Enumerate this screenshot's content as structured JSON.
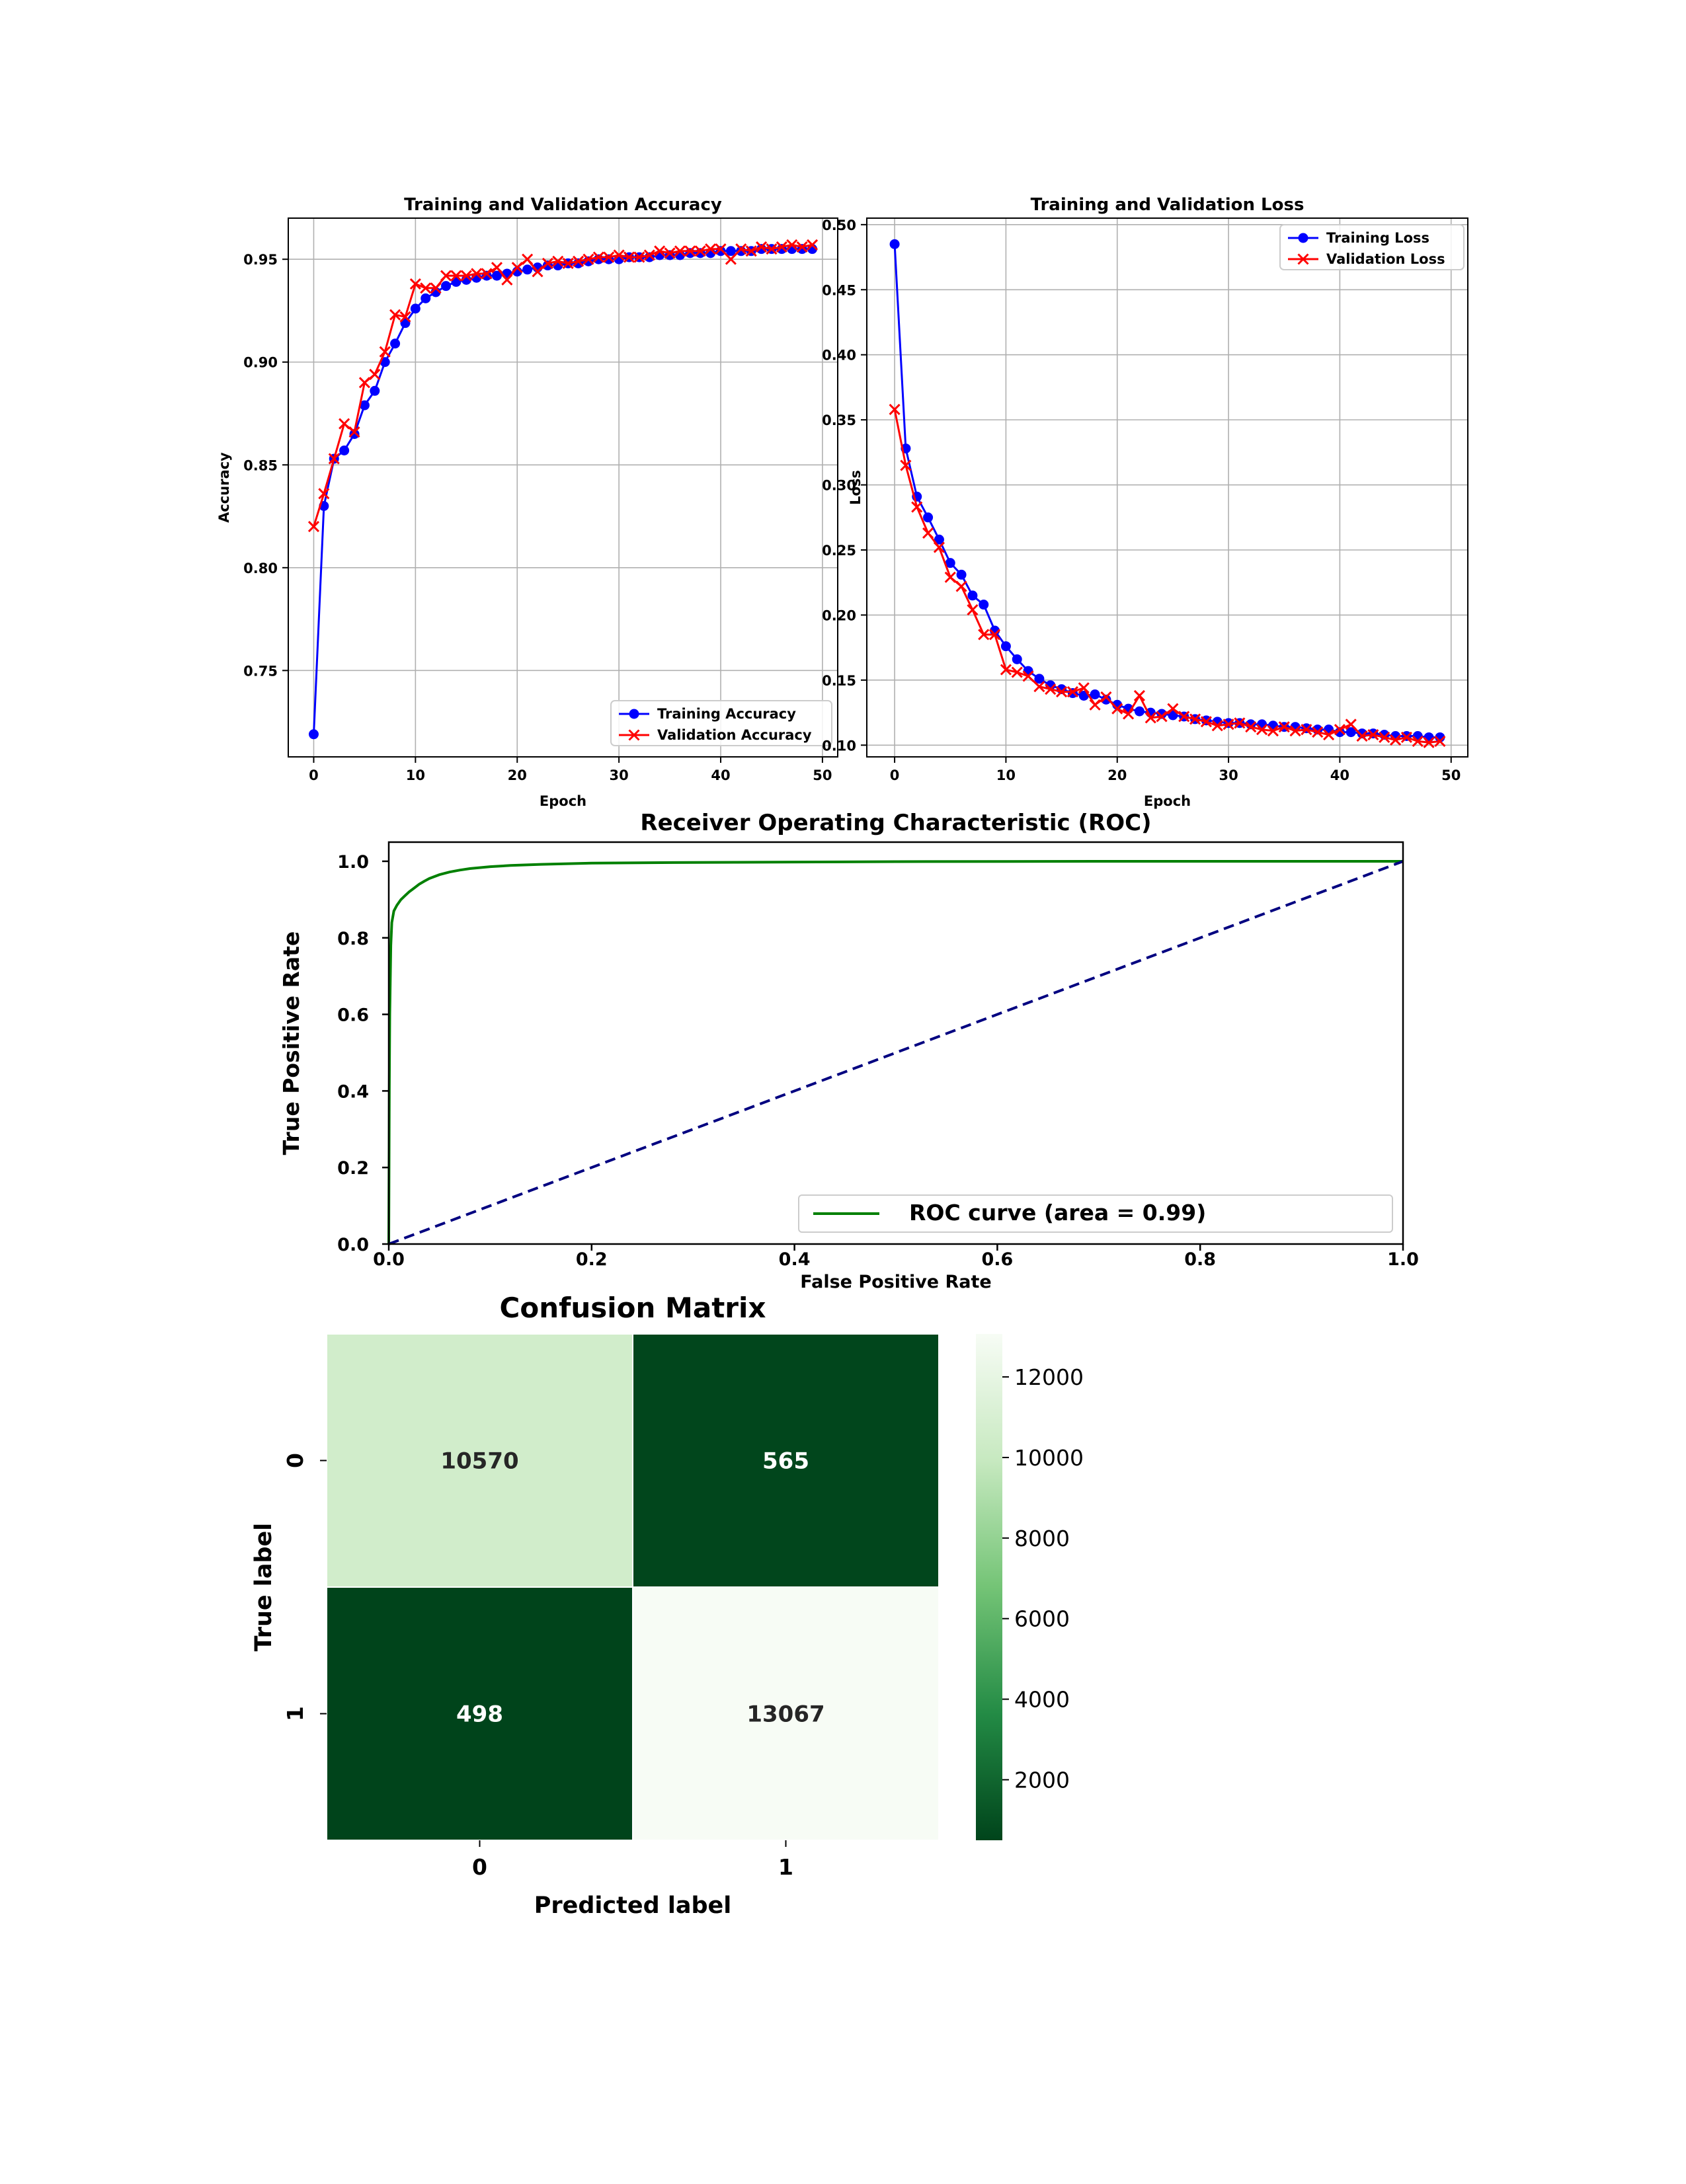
{
  "chart_data": [
    {
      "type": "line",
      "title": "Training and Validation Accuracy",
      "xlabel": "Epoch",
      "ylabel": "Accuracy",
      "xlim": [
        -2.5,
        51.5
      ],
      "ylim": [
        0.708,
        0.97
      ],
      "xticks": [
        0,
        10,
        20,
        30,
        40,
        50
      ],
      "yticks": [
        0.75,
        0.8,
        0.85,
        0.9,
        0.95
      ],
      "ytick_labels": [
        "0.75",
        "0.80",
        "0.85",
        "0.90",
        "0.95"
      ],
      "grid": true,
      "legend_position": "lower-right",
      "x": [
        0,
        1,
        2,
        3,
        4,
        5,
        6,
        7,
        8,
        9,
        10,
        11,
        12,
        13,
        14,
        15,
        16,
        17,
        18,
        19,
        20,
        21,
        22,
        23,
        24,
        25,
        26,
        27,
        28,
        29,
        30,
        31,
        32,
        33,
        34,
        35,
        36,
        37,
        38,
        39,
        40,
        41,
        42,
        43,
        44,
        45,
        46,
        47,
        48,
        49
      ],
      "series": [
        {
          "name": "Training Accuracy",
          "color": "#0000ff",
          "marker": "circle",
          "values": [
            0.719,
            0.83,
            0.853,
            0.857,
            0.865,
            0.879,
            0.886,
            0.9,
            0.909,
            0.919,
            0.926,
            0.931,
            0.934,
            0.937,
            0.939,
            0.94,
            0.941,
            0.942,
            0.942,
            0.943,
            0.944,
            0.945,
            0.946,
            0.947,
            0.947,
            0.948,
            0.948,
            0.949,
            0.95,
            0.95,
            0.95,
            0.951,
            0.951,
            0.951,
            0.952,
            0.952,
            0.952,
            0.953,
            0.953,
            0.953,
            0.954,
            0.954,
            0.954,
            0.954,
            0.955,
            0.955,
            0.955,
            0.955,
            0.955,
            0.955
          ]
        },
        {
          "name": "Validation Accuracy",
          "color": "#ff0000",
          "marker": "x",
          "values": [
            0.82,
            0.836,
            0.853,
            0.87,
            0.866,
            0.89,
            0.894,
            0.905,
            0.923,
            0.922,
            0.938,
            0.936,
            0.936,
            0.942,
            0.942,
            0.942,
            0.943,
            0.943,
            0.946,
            0.94,
            0.946,
            0.95,
            0.944,
            0.948,
            0.949,
            0.948,
            0.949,
            0.95,
            0.951,
            0.951,
            0.952,
            0.951,
            0.951,
            0.952,
            0.954,
            0.953,
            0.954,
            0.954,
            0.954,
            0.955,
            0.955,
            0.95,
            0.955,
            0.954,
            0.956,
            0.955,
            0.956,
            0.957,
            0.956,
            0.957
          ]
        }
      ]
    },
    {
      "type": "line",
      "title": "Training and Validation Loss",
      "xlabel": "Epoch",
      "ylabel": "Loss",
      "xlim": [
        -2.5,
        51.5
      ],
      "ylim": [
        0.091,
        0.505
      ],
      "xticks": [
        0,
        10,
        20,
        30,
        40,
        50
      ],
      "yticks": [
        0.1,
        0.15,
        0.2,
        0.25,
        0.3,
        0.35,
        0.4,
        0.45,
        0.5
      ],
      "ytick_labels": [
        "0.10",
        "0.15",
        "0.20",
        "0.25",
        "0.30",
        "0.35",
        "0.40",
        "0.45",
        "0.50"
      ],
      "grid": true,
      "legend_position": "upper-right",
      "x": [
        0,
        1,
        2,
        3,
        4,
        5,
        6,
        7,
        8,
        9,
        10,
        11,
        12,
        13,
        14,
        15,
        16,
        17,
        18,
        19,
        20,
        21,
        22,
        23,
        24,
        25,
        26,
        27,
        28,
        29,
        30,
        31,
        32,
        33,
        34,
        35,
        36,
        37,
        38,
        39,
        40,
        41,
        42,
        43,
        44,
        45,
        46,
        47,
        48,
        49
      ],
      "series": [
        {
          "name": "Training Loss",
          "color": "#0000ff",
          "marker": "circle",
          "values": [
            0.485,
            0.328,
            0.291,
            0.275,
            0.258,
            0.24,
            0.231,
            0.215,
            0.208,
            0.188,
            0.176,
            0.166,
            0.157,
            0.151,
            0.146,
            0.143,
            0.14,
            0.138,
            0.139,
            0.135,
            0.131,
            0.128,
            0.126,
            0.125,
            0.124,
            0.123,
            0.122,
            0.12,
            0.119,
            0.118,
            0.117,
            0.117,
            0.116,
            0.116,
            0.115,
            0.114,
            0.114,
            0.113,
            0.112,
            0.112,
            0.11,
            0.11,
            0.109,
            0.109,
            0.108,
            0.107,
            0.107,
            0.107,
            0.106,
            0.106
          ]
        },
        {
          "name": "Validation Loss",
          "color": "#ff0000",
          "marker": "x",
          "values": [
            0.358,
            0.315,
            0.283,
            0.263,
            0.252,
            0.229,
            0.222,
            0.204,
            0.185,
            0.185,
            0.158,
            0.156,
            0.153,
            0.145,
            0.143,
            0.141,
            0.141,
            0.144,
            0.131,
            0.137,
            0.128,
            0.124,
            0.138,
            0.121,
            0.122,
            0.128,
            0.122,
            0.12,
            0.118,
            0.115,
            0.116,
            0.117,
            0.114,
            0.112,
            0.111,
            0.114,
            0.111,
            0.112,
            0.11,
            0.108,
            0.112,
            0.116,
            0.107,
            0.108,
            0.106,
            0.104,
            0.106,
            0.103,
            0.102,
            0.103
          ]
        }
      ]
    },
    {
      "type": "line",
      "title": "Receiver Operating Characteristic (ROC)",
      "xlabel": "False Positive Rate",
      "ylabel": "True Positive Rate",
      "xlim": [
        0.0,
        1.0
      ],
      "ylim": [
        0.0,
        1.05
      ],
      "xticks": [
        0.0,
        0.2,
        0.4,
        0.6,
        0.8,
        1.0
      ],
      "yticks": [
        0.0,
        0.2,
        0.4,
        0.6,
        0.8,
        1.0
      ],
      "tick_labels": [
        "0.0",
        "0.2",
        "0.4",
        "0.6",
        "0.8",
        "1.0"
      ],
      "grid": false,
      "legend_position": "lower-right",
      "series": [
        {
          "name": "ROC curve (area = 0.99)",
          "color": "#008000",
          "style": "solid",
          "x": [
            0.0,
            0.0005,
            0.001,
            0.002,
            0.003,
            0.005,
            0.008,
            0.012,
            0.016,
            0.02,
            0.025,
            0.03,
            0.035,
            0.04,
            0.05,
            0.06,
            0.07,
            0.08,
            0.1,
            0.12,
            0.15,
            0.2,
            0.3,
            0.4,
            0.5,
            0.7,
            1.0
          ],
          "y": [
            0.0,
            0.4,
            0.6,
            0.78,
            0.84,
            0.87,
            0.885,
            0.9,
            0.91,
            0.92,
            0.93,
            0.94,
            0.948,
            0.955,
            0.965,
            0.972,
            0.977,
            0.981,
            0.986,
            0.989,
            0.992,
            0.995,
            0.997,
            0.998,
            0.999,
            1.0,
            1.0
          ]
        },
        {
          "color": "#000080",
          "style": "dashed",
          "x": [
            0.0,
            1.0
          ],
          "y": [
            0.0,
            1.0
          ]
        }
      ]
    },
    {
      "type": "heatmap",
      "title": "Confusion Matrix",
      "xlabel": "Predicted label",
      "ylabel": "True label",
      "x_categories": [
        "0",
        "1"
      ],
      "y_categories": [
        "0",
        "1"
      ],
      "values": [
        [
          10570,
          565
        ],
        [
          498,
          13067
        ]
      ],
      "cell_labels": [
        [
          "10570",
          "565"
        ],
        [
          "498",
          "13067"
        ]
      ],
      "colormap": "Greens",
      "colorbar": {
        "vmin": 498,
        "vmax": 13067,
        "ticks": [
          2000,
          4000,
          6000,
          8000,
          10000,
          12000
        ],
        "tick_labels": [
          "2000",
          "4000",
          "6000",
          "8000",
          "10000",
          "12000"
        ]
      }
    }
  ]
}
